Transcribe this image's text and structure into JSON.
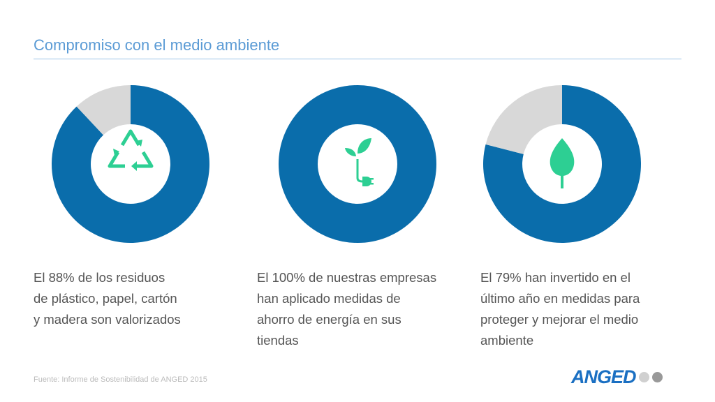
{
  "title": "Compromiso con el medio ambiente",
  "colors": {
    "filled": "#0a6dab",
    "remainder": "#d8d8d8",
    "icon": "#2dcf93",
    "title": "#5b9bd5"
  },
  "chart_data": [
    {
      "type": "pie",
      "variant": "donut",
      "values": [
        88,
        12
      ],
      "icon": "recycle-icon",
      "caption": [
        "El 88% de los residuos",
        "de plástico, papel, cartón",
        "y madera son valorizados"
      ]
    },
    {
      "type": "pie",
      "variant": "donut",
      "values": [
        100,
        0
      ],
      "icon": "plant-plug-icon",
      "caption": [
        "El 100% de nuestras empresas",
        "han aplicado medidas de",
        "ahorro de energía en sus",
        "tiendas"
      ]
    },
    {
      "type": "pie",
      "variant": "donut",
      "values": [
        79,
        21
      ],
      "icon": "leaf-icon",
      "caption": [
        "El 79% han invertido en el",
        "último año en medidas para",
        "proteger y mejorar el medio",
        "ambiente"
      ]
    }
  ],
  "source": "Fuente:  Informe de Sostenibilidad de ANGED 2015",
  "logo": {
    "text": "ANGED",
    "dots": [
      "#d0d0d0",
      "#999999"
    ]
  }
}
